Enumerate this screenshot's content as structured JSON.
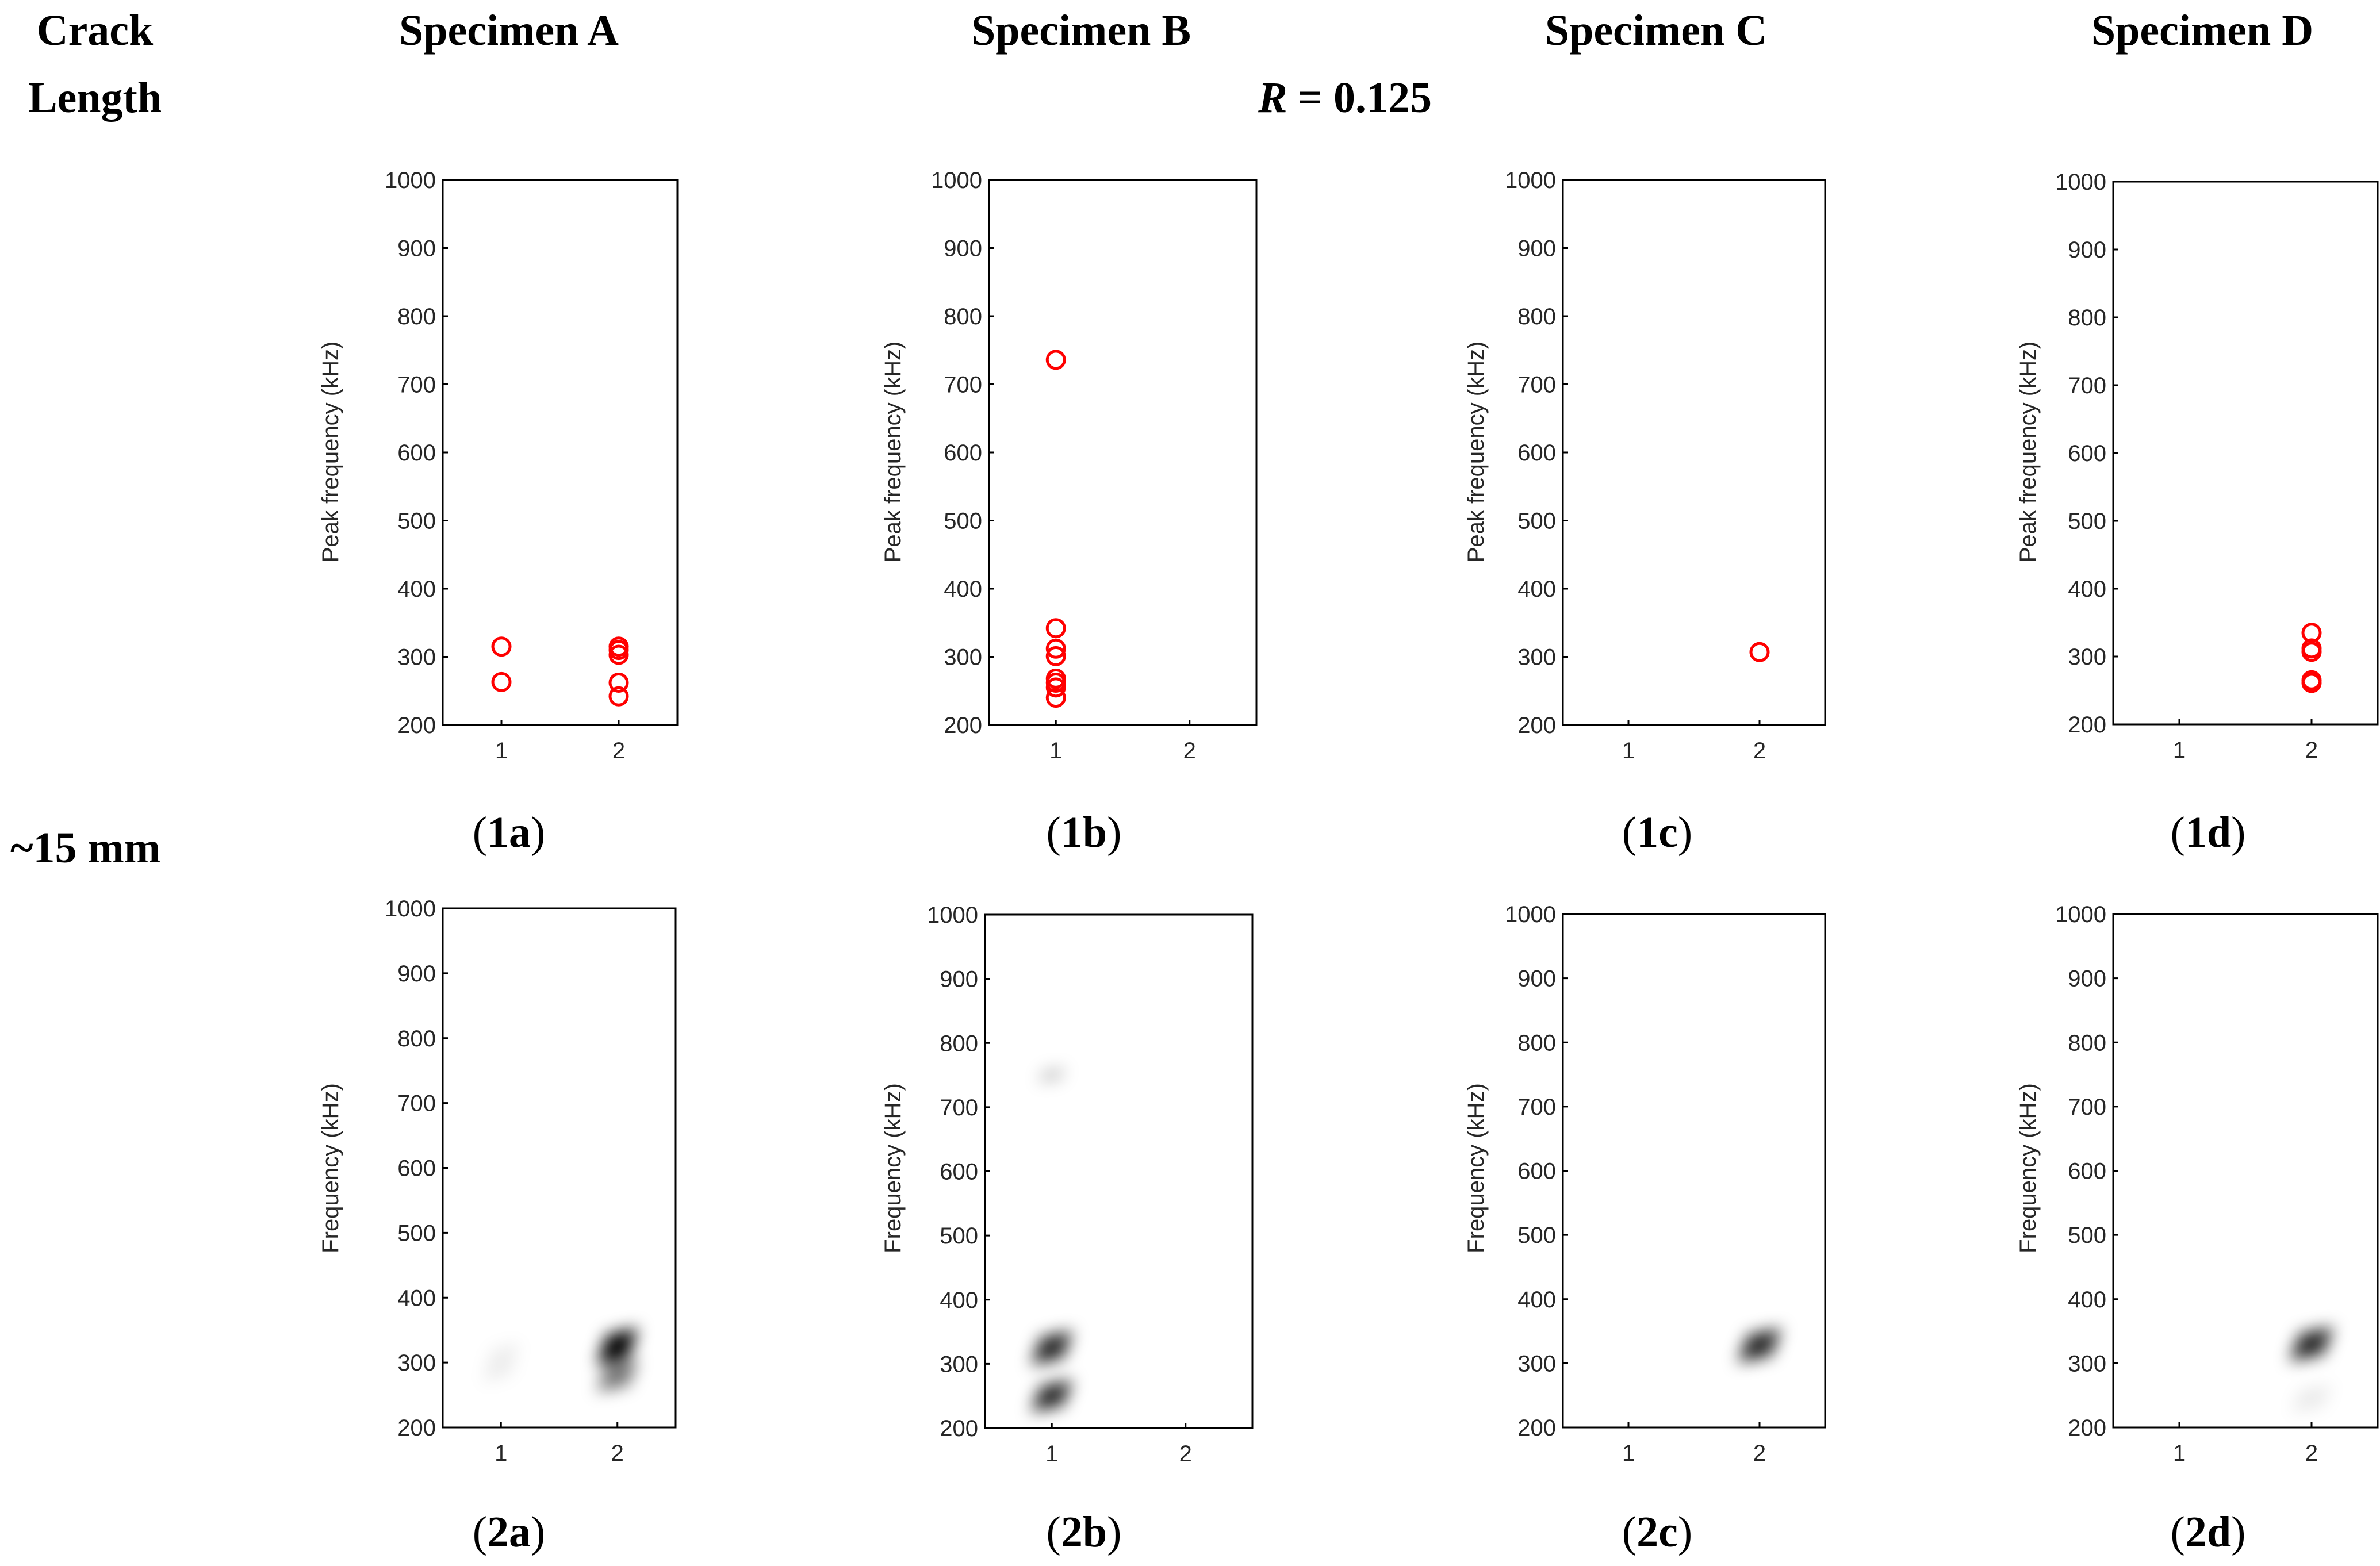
{
  "headers": {
    "crack_length_line1": "Crack",
    "crack_length_line2": "Length",
    "row_label": "~15 mm",
    "r_symbol": "R",
    "r_value": "= 0.125",
    "specimens": [
      "Specimen A",
      "Specimen B",
      "Specimen C",
      "Specimen D"
    ]
  },
  "colors": {
    "marker": "#ff0000",
    "axis": "#000000",
    "tick_text": "#262626",
    "heat": "#000000"
  },
  "chart_data": [
    {
      "id": "1a",
      "caption_num": "1",
      "caption_letter": "a",
      "type": "scatter",
      "marker": "open-circle",
      "title": "",
      "xlabel": "",
      "ylabel": "Peak frequency (kHz)",
      "xlim": [
        0.5,
        2.5
      ],
      "ylim": [
        200,
        1000
      ],
      "xticks": [
        "1",
        "2"
      ],
      "yticks": [
        "200",
        "300",
        "400",
        "500",
        "600",
        "700",
        "800",
        "900",
        "1000"
      ],
      "points": [
        [
          1,
          315
        ],
        [
          1,
          263
        ],
        [
          2,
          315
        ],
        [
          2,
          310
        ],
        [
          2,
          303
        ],
        [
          2,
          262
        ],
        [
          2,
          242
        ]
      ]
    },
    {
      "id": "1b",
      "caption_num": "1",
      "caption_letter": "b",
      "type": "scatter",
      "marker": "open-circle",
      "title": "",
      "xlabel": "",
      "ylabel": "Peak frequency (kHz)",
      "xlim": [
        0.5,
        2.5
      ],
      "ylim": [
        200,
        1000
      ],
      "xticks": [
        "1",
        "2"
      ],
      "yticks": [
        "200",
        "300",
        "400",
        "500",
        "600",
        "700",
        "800",
        "900",
        "1000"
      ],
      "points": [
        [
          1,
          736
        ],
        [
          1,
          342
        ],
        [
          1,
          312
        ],
        [
          1,
          301
        ],
        [
          1,
          268
        ],
        [
          1,
          262
        ],
        [
          1,
          255
        ],
        [
          1,
          240
        ]
      ]
    },
    {
      "id": "1c",
      "caption_num": "1",
      "caption_letter": "c",
      "type": "scatter",
      "marker": "open-circle",
      "title": "",
      "xlabel": "",
      "ylabel": "Peak frequency (kHz)",
      "xlim": [
        0.5,
        2.5
      ],
      "ylim": [
        200,
        1000
      ],
      "xticks": [
        "1",
        "2"
      ],
      "yticks": [
        "200",
        "300",
        "400",
        "500",
        "600",
        "700",
        "800",
        "900",
        "1000"
      ],
      "points": [
        [
          2,
          307
        ]
      ]
    },
    {
      "id": "1d",
      "caption_num": "1",
      "caption_letter": "d",
      "type": "scatter",
      "marker": "open-circle",
      "title": "",
      "xlabel": "",
      "ylabel": "Peak frequency (kHz)",
      "xlim": [
        0.5,
        2.5
      ],
      "ylim": [
        200,
        1000
      ],
      "xticks": [
        "1",
        "2"
      ],
      "yticks": [
        "200",
        "300",
        "400",
        "500",
        "600",
        "700",
        "800",
        "900",
        "1000"
      ],
      "points": [
        [
          2,
          335
        ],
        [
          2,
          312
        ],
        [
          2,
          307
        ],
        [
          2,
          265
        ],
        [
          2,
          261
        ]
      ]
    },
    {
      "id": "2a",
      "caption_num": "2",
      "caption_letter": "a",
      "type": "heatmap",
      "title": "",
      "xlabel": "",
      "ylabel": "Frequency (kHz)",
      "xlim": [
        0.5,
        2.5
      ],
      "ylim": [
        200,
        1000
      ],
      "xticks": [
        "1",
        "2"
      ],
      "yticks": [
        "200",
        "300",
        "400",
        "500",
        "600",
        "700",
        "800",
        "900",
        "1000"
      ],
      "blobs": [
        {
          "x": 1.0,
          "y": 300,
          "intensity": 0.07,
          "dx": 0.15,
          "dy": 35
        },
        {
          "x": 2.0,
          "y": 325,
          "intensity": 1.0,
          "dx": 0.17,
          "dy": 32
        },
        {
          "x": 2.0,
          "y": 280,
          "intensity": 0.55,
          "dx": 0.17,
          "dy": 28
        }
      ]
    },
    {
      "id": "2b",
      "caption_num": "2",
      "caption_letter": "b",
      "type": "heatmap",
      "title": "",
      "xlabel": "",
      "ylabel": "Frequency (kHz)",
      "xlim": [
        0.5,
        2.5
      ],
      "ylim": [
        200,
        1000
      ],
      "xticks": [
        "1",
        "2"
      ],
      "yticks": [
        "200",
        "300",
        "400",
        "500",
        "600",
        "700",
        "800",
        "900",
        "1000"
      ],
      "blobs": [
        {
          "x": 1.0,
          "y": 750,
          "intensity": 0.25,
          "dx": 0.1,
          "dy": 12
        },
        {
          "x": 1.0,
          "y": 325,
          "intensity": 0.85,
          "dx": 0.15,
          "dy": 30
        },
        {
          "x": 1.0,
          "y": 250,
          "intensity": 0.85,
          "dx": 0.15,
          "dy": 28
        }
      ]
    },
    {
      "id": "2c",
      "caption_num": "2",
      "caption_letter": "c",
      "type": "heatmap",
      "title": "",
      "xlabel": "",
      "ylabel": "Frequency (kHz)",
      "xlim": [
        0.5,
        2.5
      ],
      "ylim": [
        200,
        1000
      ],
      "xticks": [
        "1",
        "2"
      ],
      "yticks": [
        "200",
        "300",
        "400",
        "500",
        "600",
        "700",
        "800",
        "900",
        "1000"
      ],
      "blobs": [
        {
          "x": 2.0,
          "y": 328,
          "intensity": 0.85,
          "dx": 0.16,
          "dy": 30
        }
      ]
    },
    {
      "id": "2d",
      "caption_num": "2",
      "caption_letter": "d",
      "type": "heatmap",
      "title": "",
      "xlabel": "",
      "ylabel": "Frequency (kHz)",
      "xlim": [
        0.5,
        2.5
      ],
      "ylim": [
        200,
        1000
      ],
      "xticks": [
        "1",
        "2"
      ],
      "yticks": [
        "200",
        "300",
        "400",
        "500",
        "600",
        "700",
        "800",
        "900",
        "1000"
      ],
      "blobs": [
        {
          "x": 2.0,
          "y": 330,
          "intensity": 0.85,
          "dx": 0.16,
          "dy": 30
        },
        {
          "x": 2.0,
          "y": 245,
          "intensity": 0.08,
          "dx": 0.15,
          "dy": 25
        }
      ]
    }
  ]
}
